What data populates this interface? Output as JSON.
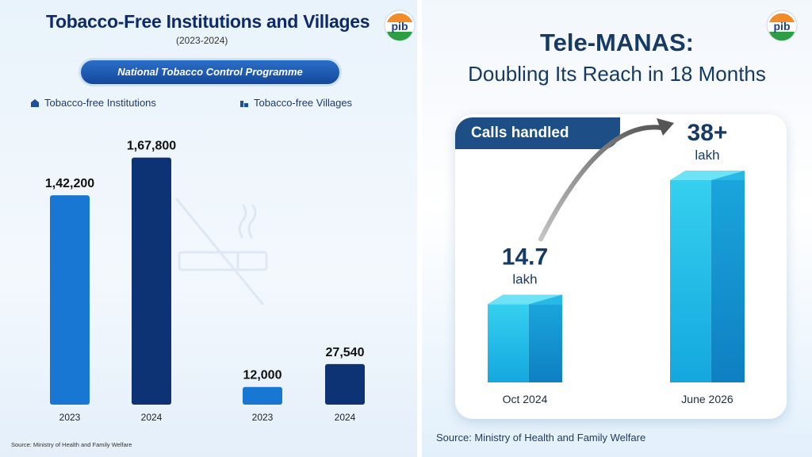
{
  "left": {
    "title": "Tobacco-Free Institutions and Villages",
    "subtitle": "(2023-2024)",
    "programme_label": "National Tobacco Control Programme",
    "source": "Source: Ministry of Health and Family Welfare"
  },
  "right": {
    "title_line1": "Tele-MANAS:",
    "title_line2": "Doubling Its Reach in 18 Months",
    "card_label": "Calls handled",
    "source": "Source: Ministry of Health and Family Welfare"
  },
  "logo_text": "pib",
  "chart_data": [
    {
      "type": "bar",
      "title": "Tobacco-Free Institutions and Villages",
      "legend": [
        "Tobacco-free Institutions",
        "Tobacco-free Villages"
      ],
      "legend_position": "top",
      "ylim": [
        0,
        180000
      ],
      "grid": false,
      "groups": [
        {
          "name": "Tobacco-free Institutions",
          "bars": [
            {
              "x": "2023",
              "value": 142200,
              "label": "1,42,200",
              "color": "#1877d2"
            },
            {
              "x": "2024",
              "value": 167800,
              "label": "1,67,800",
              "color": "#0d3374"
            }
          ]
        },
        {
          "name": "Tobacco-free Villages",
          "bars": [
            {
              "x": "2023",
              "value": 12000,
              "label": "12,000",
              "color": "#1877d2"
            },
            {
              "x": "2024",
              "value": 27540,
              "label": "27,540",
              "color": "#0d3374"
            }
          ]
        }
      ]
    },
    {
      "type": "bar",
      "title": "Calls handled",
      "unit": "lakh",
      "ylim": [
        0,
        45
      ],
      "grid": false,
      "bars": [
        {
          "x": "Oct 2024",
          "value": 14.7,
          "label": "14.7"
        },
        {
          "x": "June 2026",
          "value": 38,
          "label": "38+"
        }
      ]
    }
  ]
}
